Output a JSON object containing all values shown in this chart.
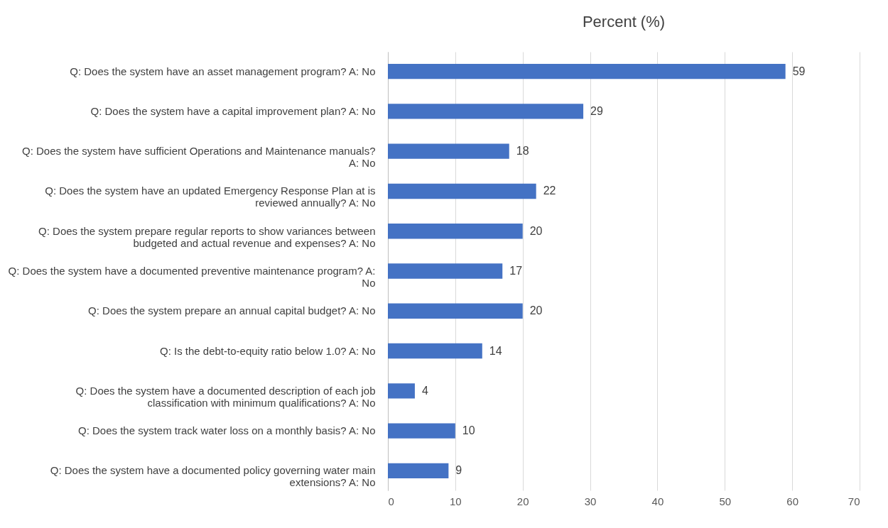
{
  "chart_data": {
    "type": "bar",
    "orientation": "horizontal",
    "title": "Percent (%)",
    "categories": [
      "Q: Does the system have an asset management program? A: No",
      "Q: Does the system have a capital improvement plan? A: No",
      "Q: Does the system have sufficient Operations and Maintenance manuals? A: No",
      "Q: Does the system have an updated Emergency Response Plan at is reviewed annually? A: No",
      "Q: Does the system prepare regular reports to show variances between budgeted and actual revenue and expenses? A: No",
      "Q: Does the system have a documented preventive maintenance program? A: No",
      "Q: Does the system prepare an annual capital budget? A: No",
      "Q: Is the debt-to-equity ratio below 1.0? A: No",
      "Q: Does the system have a documented description of each job classification with minimum qualifications? A: No",
      "Q: Does the system track water loss on a monthly basis? A: No",
      "Q: Does the system have a documented policy governing water main extensions? A: No"
    ],
    "values": [
      59,
      29,
      18,
      22,
      20,
      17,
      20,
      14,
      4,
      10,
      9
    ],
    "color": "#4472c4",
    "xlim": [
      0,
      70
    ],
    "xticks": [
      0,
      10,
      20,
      30,
      40,
      50,
      60,
      70
    ],
    "grid": "x",
    "data_labels": true
  }
}
